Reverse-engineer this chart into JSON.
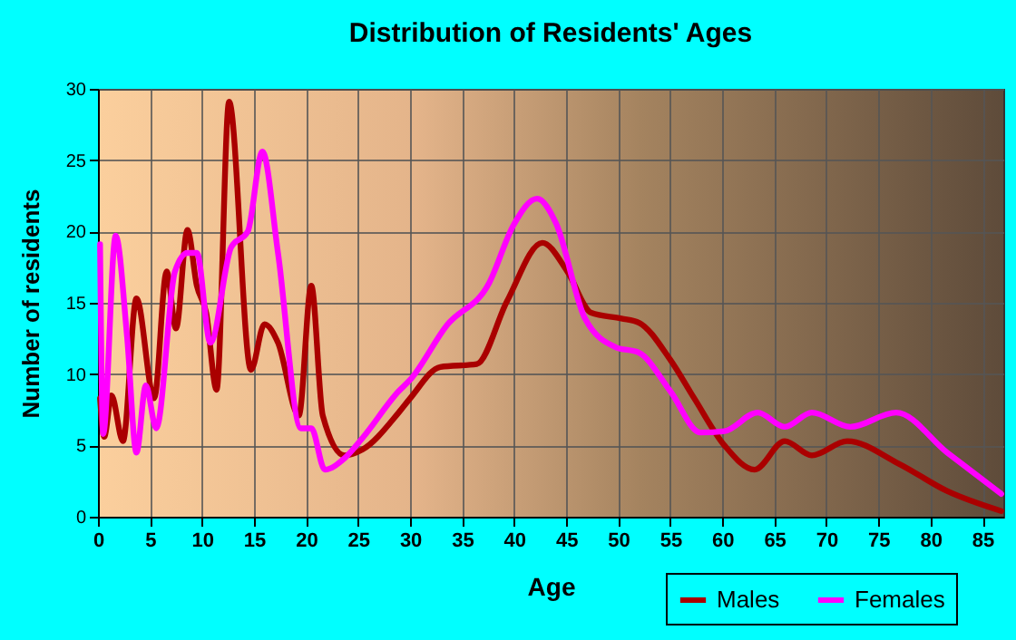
{
  "chart_data": {
    "type": "line",
    "title": "Distribution of Residents' Ages",
    "xlabel": "Age",
    "ylabel": "Number of residents",
    "xlim": [
      0,
      87
    ],
    "xticks": [
      0,
      5,
      10,
      15,
      20,
      25,
      30,
      35,
      40,
      45,
      50,
      55,
      60,
      65,
      70,
      75,
      80,
      85
    ],
    "ylim": [
      0,
      30
    ],
    "yticks": [
      0,
      5,
      10,
      15,
      20,
      25,
      30
    ],
    "grid": true,
    "legend": "bottom right",
    "line_style": "solid",
    "marker": "none",
    "series": [
      {
        "name": "Males",
        "color": "#aa0000",
        "x": [
          0.2,
          0.6,
          1.3,
          2.4,
          3.7,
          5.4,
          6.6,
          7.5,
          8.6,
          9.5,
          10.4,
          11.4,
          12.6,
          14.7,
          16.0,
          17.3,
          19.3,
          20.5,
          21.6,
          23.7,
          25.4,
          28.9,
          30.0,
          32.9,
          36.4,
          39.3,
          42.7,
          45.1,
          47.4,
          50.3,
          52.0,
          55.0,
          57.3,
          60.2,
          63.1,
          66.0,
          68.6,
          72.0,
          77.0,
          81.6,
          86.8
        ],
        "values": [
          8.3,
          5.6,
          8.5,
          5.3,
          15.3,
          8.3,
          17.2,
          13.2,
          20.1,
          16.2,
          14.3,
          8.9,
          29.1,
          10.3,
          13.5,
          12.2,
          7.1,
          16.2,
          7.1,
          4.3,
          4.7,
          7.3,
          8.3,
          10.5,
          10.7,
          15.1,
          19.2,
          17.2,
          14.3,
          13.9,
          13.6,
          11.0,
          8.3,
          5.0,
          3.3,
          5.3,
          4.3,
          5.3,
          3.7,
          1.8,
          0.4
        ]
      },
      {
        "name": "Females",
        "color": "#ff00ff",
        "x": [
          0.2,
          0.5,
          1.7,
          2.8,
          3.7,
          4.6,
          5.6,
          7.4,
          8.6,
          9.5,
          10.8,
          12.8,
          14.4,
          15.8,
          17.3,
          19.5,
          20.5,
          21.8,
          23.7,
          25.4,
          28.9,
          30.0,
          33.5,
          37.6,
          39.9,
          42.2,
          44.0,
          46.8,
          49.7,
          52.0,
          55.0,
          57.9,
          60.2,
          63.4,
          66.0,
          68.6,
          72.3,
          76.7,
          81.6,
          86.8
        ],
        "values": [
          19.1,
          5.8,
          19.7,
          12.6,
          4.5,
          9.2,
          6.2,
          17.2,
          18.5,
          18.5,
          12.2,
          18.9,
          20.0,
          25.6,
          18.5,
          6.2,
          6.2,
          3.3,
          4.1,
          5.5,
          8.8,
          9.6,
          13.4,
          16.4,
          20.4,
          22.3,
          20.6,
          13.9,
          11.9,
          11.5,
          8.8,
          5.9,
          6.0,
          7.3,
          6.3,
          7.3,
          6.3,
          7.3,
          4.5,
          1.6
        ]
      }
    ]
  }
}
